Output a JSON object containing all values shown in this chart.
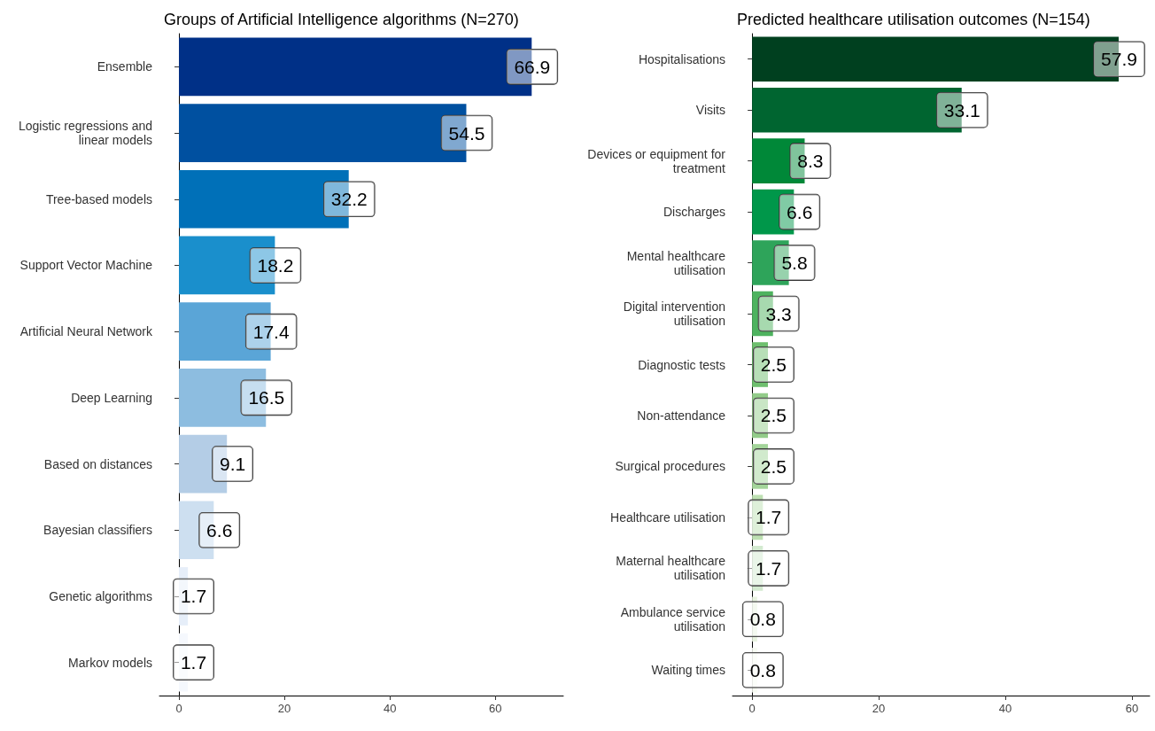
{
  "chart_data": [
    {
      "type": "bar",
      "orientation": "horizontal",
      "title": "Groups of Artificial Intelligence algorithms (N=270)",
      "categories": [
        "Ensemble",
        "Logistic regressions and\nlinear models",
        "Tree-based models",
        "Support Vector Machine",
        "Artificial Neural Network",
        "Deep Learning",
        "Based on distances",
        "Bayesian classifiers",
        "Genetic algorithms",
        "Markov models"
      ],
      "values": [
        66.9,
        54.5,
        32.2,
        18.2,
        17.4,
        16.5,
        9.1,
        6.6,
        1.7,
        1.7
      ],
      "colors": [
        "#003087",
        "#0050a0",
        "#0070b8",
        "#1a8fcc",
        "#5aa5d7",
        "#8dbde0",
        "#b4cde6",
        "#cddff0",
        "#e6eef9",
        "#f5f8fd"
      ],
      "xlim": [
        -3.7,
        72.9
      ],
      "xticks": [
        0,
        20,
        40,
        60
      ],
      "grid": false,
      "data_labels": true
    },
    {
      "type": "bar",
      "orientation": "horizontal",
      "title": "Predicted healthcare utilisation outcomes (N=154)",
      "categories": [
        "Hospitalisations",
        "Visits",
        "Devices or equipment for\ntreatment",
        "Discharges",
        "Mental healthcare\nutilisation",
        "Digital intervention\nutilisation",
        "Diagnostic tests",
        "Non-attendance",
        "Surgical procedures",
        "Healthcare utilisation",
        "Maternal healthcare\nutilisation",
        "Ambulance service\nutilisation",
        "Waiting times"
      ],
      "values": [
        57.9,
        33.1,
        8.3,
        6.6,
        5.8,
        3.3,
        2.5,
        2.5,
        2.5,
        1.7,
        1.7,
        0.8,
        0.8
      ],
      "colors": [
        "#00401f",
        "#006530",
        "#008838",
        "#00974a",
        "#2ea45a",
        "#4eb35f",
        "#6ebf6e",
        "#93cc8a",
        "#a3d49a",
        "#bde0b2",
        "#d3ead0",
        "#e8f3e0",
        "#f7fbf3"
      ],
      "xlim": [
        -3.1,
        62.8
      ],
      "xticks": [
        0,
        20,
        40,
        60
      ],
      "grid": false,
      "data_labels": true
    }
  ]
}
